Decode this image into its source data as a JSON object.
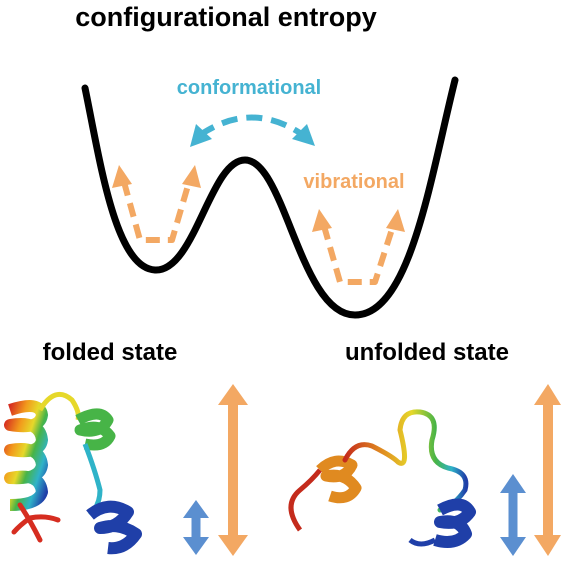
{
  "title": "configurational entropy",
  "labels": {
    "conformational": "conformational",
    "vibrational": "vibrational",
    "folded": "folded state",
    "unfolded": "unfolded state"
  },
  "colors": {
    "curve": "#000000",
    "conformational": "#45b3d2",
    "vibrational": "#f3a863",
    "small_arrow": "#5b8fd0",
    "large_arrow": "#f3a863",
    "text": "#000000"
  },
  "icons": {
    "folded_protein": "folded-protein-ribbon",
    "unfolded_protein": "unfolded-protein-ribbon",
    "conformational_arrow": "curved-dashed-double-arrow",
    "vibrational_arrow": "dashed-v-double-arrow",
    "small_range_arrow": "vertical-double-arrow-short",
    "large_range_arrow": "vertical-double-arrow-long"
  }
}
